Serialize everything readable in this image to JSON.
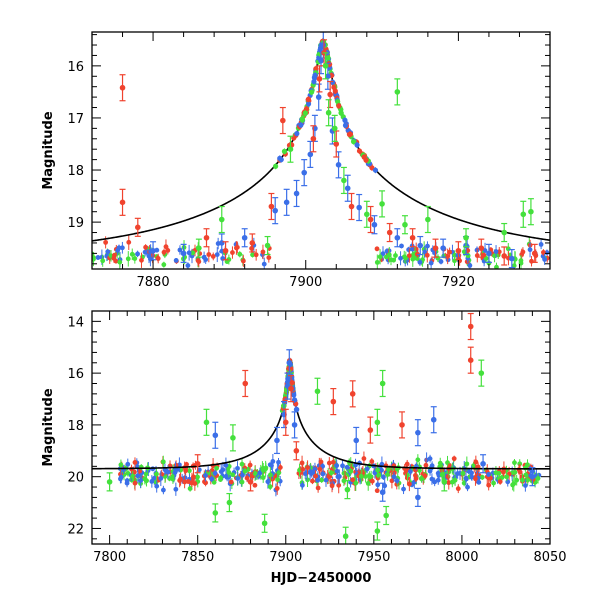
{
  "chart_data": [
    {
      "type": "scatter",
      "panel": "top",
      "xlabel": "",
      "ylabel": "Magnitude",
      "xlim": [
        7872,
        7932
      ],
      "ylim": [
        19.9,
        15.35
      ],
      "y_inverted": true,
      "x_ticks": [
        7880,
        7900,
        7920
      ],
      "y_ticks": [
        16,
        17,
        18,
        19
      ],
      "grid": false,
      "model_curve": {
        "name": "",
        "color": "#000000",
        "t0": 7902.3,
        "peak_mag": 15.55,
        "baseline_mag": 19.7,
        "tE": 30,
        "u0": 0.024
      },
      "series": [
        {
          "name": "",
          "color": "#3b6fe8",
          "points": [
            [
              7896,
              18.78
            ],
            [
              7897.5,
              18.62
            ],
            [
              7898.8,
              18.45
            ],
            [
              7899.8,
              18.05
            ],
            [
              7900.6,
              17.7
            ],
            [
              7901.2,
              17.2
            ],
            [
              7901.7,
              16.6
            ],
            [
              7902.0,
              15.9
            ],
            [
              7902.3,
              15.6
            ],
            [
              7902.9,
              16.2
            ],
            [
              7903.5,
              17.25
            ],
            [
              7904.3,
              17.9
            ],
            [
              7905.5,
              18.35
            ],
            [
              7907,
              18.72
            ],
            [
              7909,
              19.05
            ],
            [
              7912,
              19.3
            ],
            [
              7915,
              19.45
            ],
            [
              7918,
              19.5
            ],
            [
              7921,
              19.45
            ],
            [
              7924,
              19.6
            ],
            [
              7927,
              19.7
            ],
            [
              7880,
              19.55
            ],
            [
              7884,
              19.6
            ],
            [
              7889,
              19.4
            ],
            [
              7892,
              19.3
            ]
          ]
        },
        {
          "name": "",
          "color": "#f0432e",
          "points": [
            [
              7876,
              16.42
            ],
            [
              7876,
              18.62
            ],
            [
              7878,
              19.1
            ],
            [
              7897,
              17.05
            ],
            [
              7895.5,
              18.7
            ],
            [
              7901.0,
              17.4
            ],
            [
              7901.8,
              16.25
            ],
            [
              7902.4,
              15.75
            ],
            [
              7903.2,
              16.55
            ],
            [
              7904,
              17.5
            ],
            [
              7906,
              18.7
            ],
            [
              7908.5,
              18.95
            ],
            [
              7911,
              19.2
            ],
            [
              7914,
              19.3
            ],
            [
              7917,
              19.5
            ],
            [
              7920,
              19.55
            ],
            [
              7923,
              19.5
            ],
            [
              7926,
              19.65
            ],
            [
              7930,
              19.6
            ],
            [
              7887,
              19.3
            ],
            [
              7889.5,
              19.55
            ],
            [
              7893,
              19.4
            ]
          ]
        },
        {
          "name": "",
          "color": "#44e03c",
          "points": [
            [
              7912,
              16.5
            ],
            [
              7898,
              17.6
            ],
            [
              7902.6,
              16.0
            ],
            [
              7903.0,
              16.9
            ],
            [
              7903.8,
              17.2
            ],
            [
              7905,
              18.2
            ],
            [
              7908,
              18.85
            ],
            [
              7910,
              18.65
            ],
            [
              7913,
              19.05
            ],
            [
              7916,
              18.95
            ],
            [
              7921,
              19.3
            ],
            [
              7926,
              19.2
            ],
            [
              7928.5,
              18.85
            ],
            [
              7929.5,
              18.8
            ],
            [
              7889,
              18.95
            ],
            [
              7895,
              19.45
            ],
            [
              7886,
              19.5
            ]
          ]
        }
      ],
      "noise_band": [
        19.35,
        19.9
      ]
    },
    {
      "type": "scatter",
      "panel": "bottom",
      "xlabel": "HJD−2450000",
      "ylabel": "Magnitude",
      "xlim": [
        7790,
        8050
      ],
      "ylim": [
        22.6,
        13.6
      ],
      "y_inverted": true,
      "x_ticks": [
        7800,
        7850,
        7900,
        7950,
        8000,
        8050
      ],
      "y_ticks": [
        14,
        16,
        18,
        20,
        22
      ],
      "grid": false,
      "model_curve": {
        "name": "",
        "color": "#000000",
        "t0": 7902.3,
        "peak_mag": 15.55,
        "baseline_mag": 19.7,
        "tE": 30,
        "u0": 0.024
      },
      "series": [
        {
          "name": "",
          "color": "#3b6fe8",
          "points": [
            [
              7902,
              15.6
            ],
            [
              7901,
              16.5
            ],
            [
              7899,
              17.6
            ],
            [
              7905,
              18.0
            ],
            [
              7895,
              18.6
            ],
            [
              7860,
              18.4
            ],
            [
              7984,
              17.8
            ],
            [
              7975,
              18.3
            ],
            [
              7940,
              18.6
            ],
            [
              7955,
              20.6
            ],
            [
              7975,
              20.8
            ],
            [
              8012,
              19.5
            ],
            [
              8040,
              20.0
            ]
          ]
        },
        {
          "name": "",
          "color": "#f0432e",
          "points": [
            [
              8005,
              14.2
            ],
            [
              8005,
              15.5
            ],
            [
              7877,
              16.4
            ],
            [
              7903,
              16.6
            ],
            [
              7938,
              16.8
            ],
            [
              7927,
              17.1
            ],
            [
              7966,
              18.0
            ],
            [
              7948,
              18.2
            ],
            [
              7900,
              17.9
            ],
            [
              7906,
              19.0
            ],
            [
              7850,
              19.5
            ],
            [
              7880,
              20.2
            ]
          ]
        },
        {
          "name": "",
          "color": "#44e03c",
          "points": [
            [
              7955,
              16.4
            ],
            [
              7918,
              16.7
            ],
            [
              8011,
              16.0
            ],
            [
              7952,
              17.9
            ],
            [
              7855,
              17.9
            ],
            [
              7870,
              18.5
            ],
            [
              7860,
              21.4
            ],
            [
              7888,
              21.8
            ],
            [
              7934,
              22.3
            ],
            [
              7952,
              22.1
            ],
            [
              7957,
              21.5
            ],
            [
              7868,
              21.0
            ],
            [
              7990,
              20.2
            ],
            [
              7935,
              20.5
            ],
            [
              7800,
              20.2
            ]
          ]
        }
      ],
      "noise_band": [
        19.2,
        20.6
      ],
      "noise_xrange": [
        7806,
        8045
      ]
    }
  ]
}
